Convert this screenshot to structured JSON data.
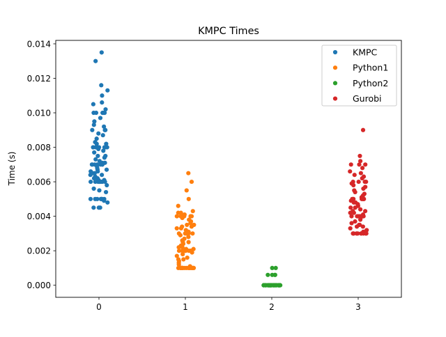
{
  "chart_data": {
    "type": "scatter",
    "title": "KMPC Times",
    "xlabel": "",
    "ylabel": "Time (s)",
    "xlim": [
      -0.5,
      3.5
    ],
    "ylim": [
      -0.0007,
      0.0142
    ],
    "x_ticks": [
      "0",
      "1",
      "2",
      "3"
    ],
    "y_ticks": [
      "0.000",
      "0.002",
      "0.004",
      "0.006",
      "0.008",
      "0.010",
      "0.012",
      "0.014"
    ],
    "grid": false,
    "legend_position": "top-right",
    "jitter_width": 0.1,
    "series": [
      {
        "name": "KMPC",
        "x": 0,
        "color": "#1f77b4",
        "values": [
          0.0135,
          0.013,
          0.0116,
          0.0113,
          0.011,
          0.0106,
          0.0105,
          0.0102,
          0.01,
          0.01,
          0.01,
          0.01,
          0.01,
          0.01,
          0.0097,
          0.0095,
          0.0093,
          0.0092,
          0.009,
          0.009,
          0.009,
          0.0088,
          0.0087,
          0.0085,
          0.0083,
          0.0082,
          0.0082,
          0.008,
          0.008,
          0.008,
          0.008,
          0.008,
          0.008,
          0.008,
          0.008,
          0.008,
          0.008,
          0.0079,
          0.0078,
          0.0077,
          0.0075,
          0.0075,
          0.0074,
          0.0073,
          0.0072,
          0.0071,
          0.0071,
          0.007,
          0.007,
          0.007,
          0.007,
          0.007,
          0.007,
          0.007,
          0.0069,
          0.0068,
          0.0067,
          0.0067,
          0.0066,
          0.0066,
          0.0065,
          0.0065,
          0.0064,
          0.0064,
          0.0063,
          0.0063,
          0.0062,
          0.0062,
          0.0061,
          0.0061,
          0.006,
          0.006,
          0.006,
          0.006,
          0.006,
          0.006,
          0.006,
          0.006,
          0.006,
          0.006,
          0.006,
          0.0058,
          0.0056,
          0.0055,
          0.0054,
          0.005,
          0.005,
          0.005,
          0.005,
          0.005,
          0.005,
          0.005,
          0.005,
          0.0049,
          0.0048,
          0.0045,
          0.0045,
          0.0045
        ]
      },
      {
        "name": "Python1",
        "x": 1,
        "color": "#ff7f0e",
        "values": [
          0.0065,
          0.006,
          0.0055,
          0.005,
          0.0046,
          0.0043,
          0.0042,
          0.0042,
          0.0041,
          0.004,
          0.004,
          0.004,
          0.004,
          0.004,
          0.004,
          0.004,
          0.004,
          0.0039,
          0.0038,
          0.0037,
          0.0036,
          0.0035,
          0.0035,
          0.0034,
          0.0034,
          0.0033,
          0.0033,
          0.0032,
          0.0031,
          0.0031,
          0.003,
          0.003,
          0.003,
          0.003,
          0.003,
          0.003,
          0.003,
          0.0029,
          0.0028,
          0.0027,
          0.0026,
          0.0025,
          0.0025,
          0.0024,
          0.0023,
          0.0022,
          0.0022,
          0.0021,
          0.0021,
          0.002,
          0.002,
          0.002,
          0.002,
          0.002,
          0.002,
          0.002,
          0.002,
          0.0019,
          0.0018,
          0.0017,
          0.0016,
          0.0015,
          0.0015,
          0.0014,
          0.0013,
          0.0012,
          0.0011,
          0.001,
          0.001,
          0.001,
          0.001,
          0.001,
          0.001,
          0.001,
          0.001,
          0.001,
          0.001,
          0.001,
          0.001,
          0.001,
          0.001,
          0.001,
          0.001,
          0.001,
          0.001,
          0.001,
          0.001
        ]
      },
      {
        "name": "Python2",
        "x": 2,
        "color": "#2ca02c",
        "values": [
          0.001,
          0.001,
          0.0006,
          0.0006,
          0.0006,
          0.0006,
          0.0,
          0.0,
          0.0,
          0.0,
          0.0,
          0.0,
          0.0,
          0.0,
          0.0,
          0.0,
          0.0,
          0.0,
          0.0,
          0.0,
          0.0,
          0.0,
          0.0,
          0.0,
          0.0,
          0.0,
          0.0,
          0.0,
          0.0,
          0.0,
          0.0,
          0.0,
          0.0,
          0.0,
          0.0,
          0.0,
          0.0,
          0.0,
          0.0,
          0.0,
          0.0,
          0.0,
          0.0,
          0.0,
          0.0,
          0.0
        ]
      },
      {
        "name": "Gurobi",
        "x": 3,
        "color": "#d62728",
        "values": [
          0.009,
          0.0075,
          0.0072,
          0.007,
          0.007,
          0.007,
          0.0068,
          0.0066,
          0.0065,
          0.0064,
          0.0063,
          0.0062,
          0.006,
          0.006,
          0.006,
          0.006,
          0.0059,
          0.0058,
          0.0057,
          0.0056,
          0.0055,
          0.0054,
          0.0053,
          0.0052,
          0.0051,
          0.005,
          0.005,
          0.005,
          0.005,
          0.005,
          0.005,
          0.005,
          0.0049,
          0.0048,
          0.0048,
          0.0047,
          0.0046,
          0.0045,
          0.0045,
          0.0044,
          0.0043,
          0.0043,
          0.0042,
          0.0042,
          0.0041,
          0.004,
          0.004,
          0.004,
          0.004,
          0.004,
          0.004,
          0.0039,
          0.0038,
          0.0037,
          0.0036,
          0.0035,
          0.0035,
          0.0034,
          0.0034,
          0.0033,
          0.0032,
          0.0031,
          0.003,
          0.003,
          0.003,
          0.003,
          0.003,
          0.003,
          0.003,
          0.003,
          0.003
        ]
      }
    ]
  }
}
